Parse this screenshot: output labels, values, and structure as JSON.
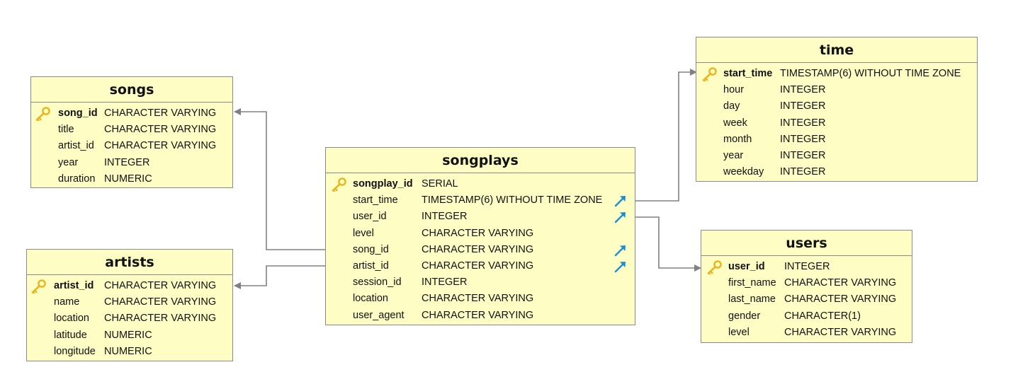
{
  "tables": {
    "songs": {
      "title": "songs",
      "columns": [
        {
          "name": "song_id",
          "type": "CHARACTER VARYING",
          "pk": true
        },
        {
          "name": "title",
          "type": "CHARACTER VARYING"
        },
        {
          "name": "artist_id",
          "type": "CHARACTER VARYING"
        },
        {
          "name": "year",
          "type": "INTEGER"
        },
        {
          "name": "duration",
          "type": "NUMERIC"
        }
      ]
    },
    "artists": {
      "title": "artists",
      "columns": [
        {
          "name": "artist_id",
          "type": "CHARACTER VARYING",
          "pk": true
        },
        {
          "name": "name",
          "type": "CHARACTER VARYING"
        },
        {
          "name": "location",
          "type": "CHARACTER VARYING"
        },
        {
          "name": "latitude",
          "type": "NUMERIC"
        },
        {
          "name": "longitude",
          "type": "NUMERIC"
        }
      ]
    },
    "songplays": {
      "title": "songplays",
      "columns": [
        {
          "name": "songplay_id",
          "type": "SERIAL",
          "pk": true
        },
        {
          "name": "start_time",
          "type": "TIMESTAMP(6) WITHOUT TIME ZONE",
          "fk": true
        },
        {
          "name": "user_id",
          "type": "INTEGER",
          "fk": true
        },
        {
          "name": "level",
          "type": "CHARACTER VARYING"
        },
        {
          "name": "song_id",
          "type": "CHARACTER VARYING",
          "fk": true
        },
        {
          "name": "artist_id",
          "type": "CHARACTER VARYING",
          "fk": true
        },
        {
          "name": "session_id",
          "type": "INTEGER"
        },
        {
          "name": "location",
          "type": "CHARACTER VARYING"
        },
        {
          "name": "user_agent",
          "type": "CHARACTER VARYING"
        }
      ]
    },
    "time": {
      "title": "time",
      "columns": [
        {
          "name": "start_time",
          "type": "TIMESTAMP(6) WITHOUT TIME ZONE",
          "pk": true
        },
        {
          "name": "hour",
          "type": "INTEGER"
        },
        {
          "name": "day",
          "type": "INTEGER"
        },
        {
          "name": "week",
          "type": "INTEGER"
        },
        {
          "name": "month",
          "type": "INTEGER"
        },
        {
          "name": "year",
          "type": "INTEGER"
        },
        {
          "name": "weekday",
          "type": "INTEGER"
        }
      ]
    },
    "users": {
      "title": "users",
      "columns": [
        {
          "name": "user_id",
          "type": "INTEGER",
          "pk": true
        },
        {
          "name": "first_name",
          "type": "CHARACTER VARYING"
        },
        {
          "name": "last_name",
          "type": "CHARACTER VARYING"
        },
        {
          "name": "gender",
          "type": "CHARACTER(1)"
        },
        {
          "name": "level",
          "type": "CHARACTER VARYING"
        }
      ]
    }
  },
  "relationships": [
    {
      "from": "songplays",
      "to": "songs"
    },
    {
      "from": "songplays",
      "to": "artists"
    },
    {
      "from": "songplays",
      "to": "time"
    },
    {
      "from": "songplays",
      "to": "users"
    }
  ],
  "colors": {
    "table_fill": "#fdfdc4",
    "table_border": "#8a8a8a",
    "connector": "#808080",
    "key_icon": "#e8b51c",
    "fk_icon": "#1a8fd6"
  },
  "icons": {
    "primary_key": "key-icon",
    "foreign_key": "arrow-up-right-icon"
  }
}
